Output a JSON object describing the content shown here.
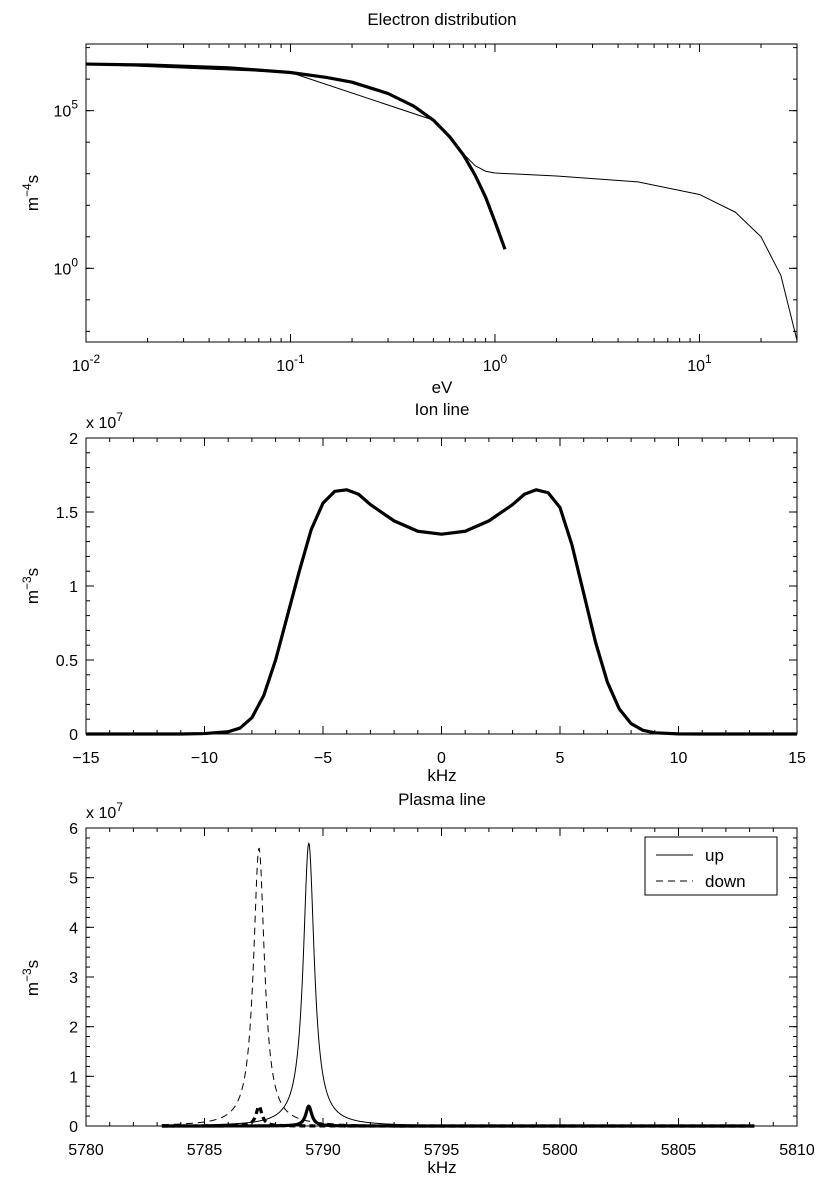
{
  "chart_data": [
    {
      "type": "line",
      "title": "Electron distribution",
      "xlabel": "eV",
      "ylabel": "m^-4 s",
      "xscale": "log",
      "yscale": "log",
      "xlim": [
        0.01,
        30
      ],
      "ylim": [
        0.0046,
        13000000
      ],
      "xticks": [
        0.01,
        0.1,
        1,
        10
      ],
      "xtick_labels": [
        {
          "base": "10",
          "exp": "-2"
        },
        {
          "base": "10",
          "exp": "-1"
        },
        {
          "base": "10",
          "exp": "0"
        },
        {
          "base": "10",
          "exp": "1"
        }
      ],
      "yticks": [
        1,
        100000
      ],
      "ytick_labels": [
        {
          "base": "10",
          "exp": "0"
        },
        {
          "base": "10",
          "exp": "5"
        }
      ],
      "grid": false,
      "series": [
        {
          "style": "thick-solid",
          "x": [
            0.01,
            0.02,
            0.05,
            0.1,
            0.15,
            0.2,
            0.3,
            0.4,
            0.5,
            0.6,
            0.7,
            0.8,
            0.9,
            1.0,
            1.12
          ],
          "y": [
            3000000,
            2800000,
            2280000,
            1620000,
            1130000,
            800000,
            350000,
            140000,
            50000,
            15000,
            4000,
            900,
            180,
            30,
            4
          ]
        },
        {
          "style": "thin-solid",
          "x": [
            0.01,
            0.1,
            0.5,
            0.7,
            0.8,
            0.9,
            1.0,
            2.0,
            5.0,
            10.0,
            15.0,
            20.0,
            25.0,
            30.0
          ],
          "y": [
            3000000,
            1620000,
            50000,
            4300,
            1800,
            1200,
            1050,
            850,
            550,
            220,
            60,
            10,
            0.6,
            0.0052
          ]
        }
      ]
    },
    {
      "type": "line",
      "title": "Ion line",
      "xlabel": "kHz",
      "ylabel": "m^-3 s",
      "xlim": [
        -15,
        15
      ],
      "ylim": [
        0,
        20000000
      ],
      "xticks": [
        -15,
        -10,
        -5,
        0,
        5,
        10,
        15
      ],
      "xtick_labels": [
        "−15",
        "−10",
        "−5",
        "0",
        "5",
        "10",
        "15"
      ],
      "yticks": [
        0,
        5000000,
        10000000,
        15000000,
        20000000
      ],
      "ytick_labels": [
        "0",
        "0.5",
        "1",
        "1.5",
        "2"
      ],
      "multiplier": {
        "base": "x 10",
        "exp": "7"
      },
      "grid": false,
      "series": [
        {
          "style": "thick-solid",
          "x": [
            -15,
            -11,
            -10,
            -9,
            -8.5,
            -8,
            -7.5,
            -7,
            -6.5,
            -6,
            -5.5,
            -5,
            -4.5,
            -4,
            -3.5,
            -3,
            -2,
            -1,
            0,
            1,
            2,
            3,
            3.5,
            4,
            4.5,
            5,
            5.5,
            6,
            6.5,
            7,
            7.5,
            8,
            8.5,
            9,
            10,
            11,
            15
          ],
          "y": [
            0,
            0,
            30000,
            150000,
            400000,
            1100000,
            2600000,
            5000000,
            8000000,
            11000000,
            13800000,
            15600000,
            16400000,
            16500000,
            16200000,
            15500000,
            14400000,
            13700000,
            13500000,
            13700000,
            14400000,
            15500000,
            16200000,
            16500000,
            16300000,
            15300000,
            12800000,
            9500000,
            6200000,
            3500000,
            1700000,
            700000,
            250000,
            80000,
            10000,
            0,
            0
          ]
        }
      ]
    },
    {
      "type": "line",
      "title": "Plasma line",
      "xlabel": "kHz",
      "ylabel": "m^-3 s",
      "xlim": [
        5780,
        5810
      ],
      "ylim": [
        0,
        60000000
      ],
      "xticks": [
        5780,
        5785,
        5790,
        5795,
        5800,
        5805,
        5810
      ],
      "xtick_labels": [
        "5780",
        "5785",
        "5790",
        "5795",
        "5800",
        "5805",
        "5810"
      ],
      "yticks": [
        0,
        10000000,
        20000000,
        30000000,
        40000000,
        50000000,
        60000000
      ],
      "ytick_labels": [
        "0",
        "1",
        "2",
        "3",
        "4",
        "5",
        "6"
      ],
      "multiplier": {
        "base": "x 10",
        "exp": "7"
      },
      "legend": {
        "placement": "top-right",
        "entries": [
          {
            "label": "up",
            "style": "thin-solid"
          },
          {
            "label": "down",
            "style": "thin-dashed"
          }
        ]
      },
      "grid": false,
      "series": [
        {
          "name": "up",
          "style": "thin-solid",
          "peak_x": 5789.4,
          "peak_y": 57000000,
          "half_width": 0.28,
          "x_range": [
            5783.2,
            5808.2
          ]
        },
        {
          "name": "down",
          "style": "thin-dashed",
          "peak_x": 5787.3,
          "peak_y": 56000000,
          "half_width": 0.28,
          "x_range": [
            5783.2,
            5808.2
          ]
        },
        {
          "style": "thick-solid",
          "peak_x": 5789.4,
          "peak_y": 4000000,
          "half_width": 0.15,
          "x_range": [
            5783.2,
            5808.2
          ]
        },
        {
          "style": "thick-dashed",
          "peak_x": 5787.3,
          "peak_y": 4000000,
          "half_width": 0.15,
          "x_range": [
            5783.2,
            5808.2
          ]
        }
      ]
    }
  ]
}
